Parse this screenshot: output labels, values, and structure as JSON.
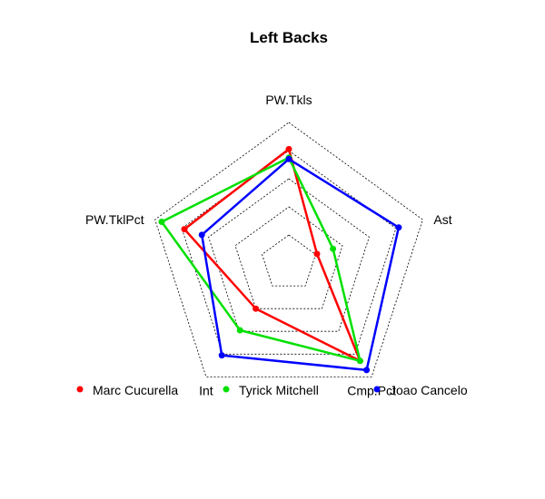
{
  "chart_data": {
    "type": "radar",
    "title": "Left Backs",
    "axes": [
      "PW.Tkls",
      "Ast",
      "Cmp.Pct",
      "Int",
      "PW.TklPct"
    ],
    "rlim": [
      0,
      1
    ],
    "grid_rings": 5,
    "series": [
      {
        "name": "Marc Cucurella",
        "color": "#ff0000",
        "values": [
          0.81,
          0.21,
          0.86,
          0.4,
          0.78
        ]
      },
      {
        "name": "Tyrick Mitchell",
        "color": "#00e000",
        "values": [
          0.75,
          0.33,
          0.86,
          0.59,
          0.95
        ]
      },
      {
        "name": "Joao Cancelo",
        "color": "#0000ff",
        "values": [
          0.74,
          0.82,
          0.94,
          0.81,
          0.65
        ]
      }
    ],
    "legend_position": "bottom"
  }
}
